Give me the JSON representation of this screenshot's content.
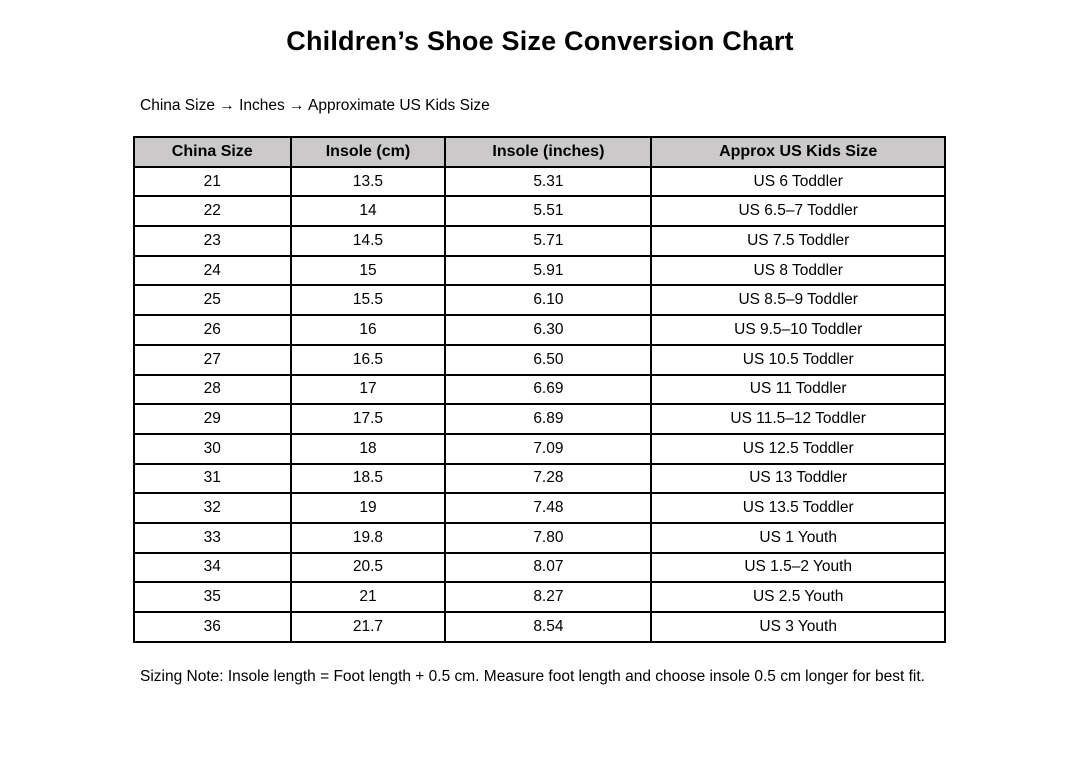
{
  "page": {
    "title": "Children’s Shoe Size Conversion Chart",
    "subtitle": "China Size → Inches → Approximate US Kids Size",
    "note": "Sizing Note: Insole length = Foot length + 0.5 cm. Measure foot length and choose insole 0.5 cm longer for best fit."
  },
  "table": {
    "headers": [
      "China Size",
      "Insole (cm)",
      "Insole (inches)",
      "Approx US Kids Size"
    ],
    "rows": [
      [
        "21",
        "13.5",
        "5.31",
        "US 6 Toddler"
      ],
      [
        "22",
        "14",
        "5.51",
        "US 6.5–7 Toddler"
      ],
      [
        "23",
        "14.5",
        "5.71",
        "US 7.5 Toddler"
      ],
      [
        "24",
        "15",
        "5.91",
        "US 8 Toddler"
      ],
      [
        "25",
        "15.5",
        "6.10",
        "US 8.5–9 Toddler"
      ],
      [
        "26",
        "16",
        "6.30",
        "US 9.5–10 Toddler"
      ],
      [
        "27",
        "16.5",
        "6.50",
        "US 10.5 Toddler"
      ],
      [
        "28",
        "17",
        "6.69",
        "US 11 Toddler"
      ],
      [
        "29",
        "17.5",
        "6.89",
        "US 11.5–12 Toddler"
      ],
      [
        "30",
        "18",
        "7.09",
        "US 12.5 Toddler"
      ],
      [
        "31",
        "18.5",
        "7.28",
        "US 13 Toddler"
      ],
      [
        "32",
        "19",
        "7.48",
        "US 13.5 Toddler"
      ],
      [
        "33",
        "19.8",
        "7.80",
        "US 1 Youth"
      ],
      [
        "34",
        "20.5",
        "8.07",
        "US 1.5–2 Youth"
      ],
      [
        "35",
        "21",
        "8.27",
        "US 2.5 Youth"
      ],
      [
        "36",
        "21.7",
        "8.54",
        "US 3 Youth"
      ]
    ]
  },
  "colors": {
    "header_bg": "#cbc9c9",
    "border": "#000000",
    "text": "#000000",
    "background": "#ffffff"
  },
  "chart_data": {
    "type": "table",
    "title": "Children’s Shoe Size Conversion Chart",
    "subtitle": "China Size → Inches → Approximate US Kids Size",
    "columns": [
      "China Size",
      "Insole (cm)",
      "Insole (inches)",
      "Approx US Kids Size"
    ],
    "china_sizes": [
      21,
      22,
      23,
      24,
      25,
      26,
      27,
      28,
      29,
      30,
      31,
      32,
      33,
      34,
      35,
      36
    ],
    "insole_cm": [
      13.5,
      14,
      14.5,
      15,
      15.5,
      16,
      16.5,
      17,
      17.5,
      18,
      18.5,
      19,
      19.8,
      20.5,
      21,
      21.7
    ],
    "insole_inches": [
      5.31,
      5.51,
      5.71,
      5.91,
      6.1,
      6.3,
      6.5,
      6.69,
      6.89,
      7.09,
      7.28,
      7.48,
      7.8,
      8.07,
      8.27,
      8.54
    ],
    "us_kids_size": [
      "US 6 Toddler",
      "US 6.5–7 Toddler",
      "US 7.5 Toddler",
      "US 8 Toddler",
      "US 8.5–9 Toddler",
      "US 9.5–10 Toddler",
      "US 10.5 Toddler",
      "US 11 Toddler",
      "US 11.5–12 Toddler",
      "US 12.5 Toddler",
      "US 13 Toddler",
      "US 13.5 Toddler",
      "US 1 Youth",
      "US 1.5–2 Youth",
      "US 2.5 Youth",
      "US 3 Youth"
    ],
    "note": "Sizing Note: Insole length = Foot length + 0.5 cm. Measure foot length and choose insole 0.5 cm longer for best fit."
  }
}
